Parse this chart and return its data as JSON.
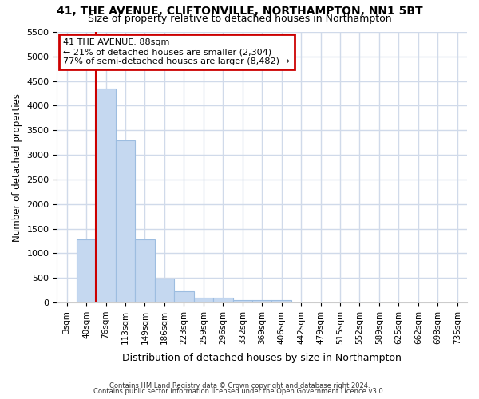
{
  "title1": "41, THE AVENUE, CLIFTONVILLE, NORTHAMPTON, NN1 5BT",
  "title2": "Size of property relative to detached houses in Northampton",
  "xlabel": "Distribution of detached houses by size in Northampton",
  "ylabel": "Number of detached properties",
  "footer1": "Contains HM Land Registry data © Crown copyright and database right 2024.",
  "footer2": "Contains public sector information licensed under the Open Government Licence v3.0.",
  "bar_labels": [
    "3sqm",
    "40sqm",
    "76sqm",
    "113sqm",
    "149sqm",
    "186sqm",
    "223sqm",
    "259sqm",
    "296sqm",
    "332sqm",
    "369sqm",
    "406sqm",
    "442sqm",
    "479sqm",
    "515sqm",
    "552sqm",
    "589sqm",
    "625sqm",
    "662sqm",
    "698sqm",
    "735sqm"
  ],
  "bar_values": [
    0,
    1280,
    4350,
    3300,
    1280,
    490,
    230,
    90,
    90,
    55,
    55,
    55,
    0,
    0,
    0,
    0,
    0,
    0,
    0,
    0,
    0
  ],
  "bar_color": "#c5d8f0",
  "bar_edge_color": "#9dbde0",
  "background_color": "#ffffff",
  "page_background": "#ffffff",
  "grid_color": "#d0daea",
  "ylim": [
    0,
    5500
  ],
  "red_line_bin_index": 2,
  "annotation_line1": "41 THE AVENUE: 88sqm",
  "annotation_line2": "← 21% of detached houses are smaller (2,304)",
  "annotation_line3": "77% of semi-detached houses are larger (8,482) →",
  "annotation_box_color": "#ffffff",
  "annotation_border_color": "#cc0000",
  "red_line_color": "#cc0000",
  "yticks": [
    0,
    500,
    1000,
    1500,
    2000,
    2500,
    3000,
    3500,
    4000,
    4500,
    5000,
    5500
  ]
}
